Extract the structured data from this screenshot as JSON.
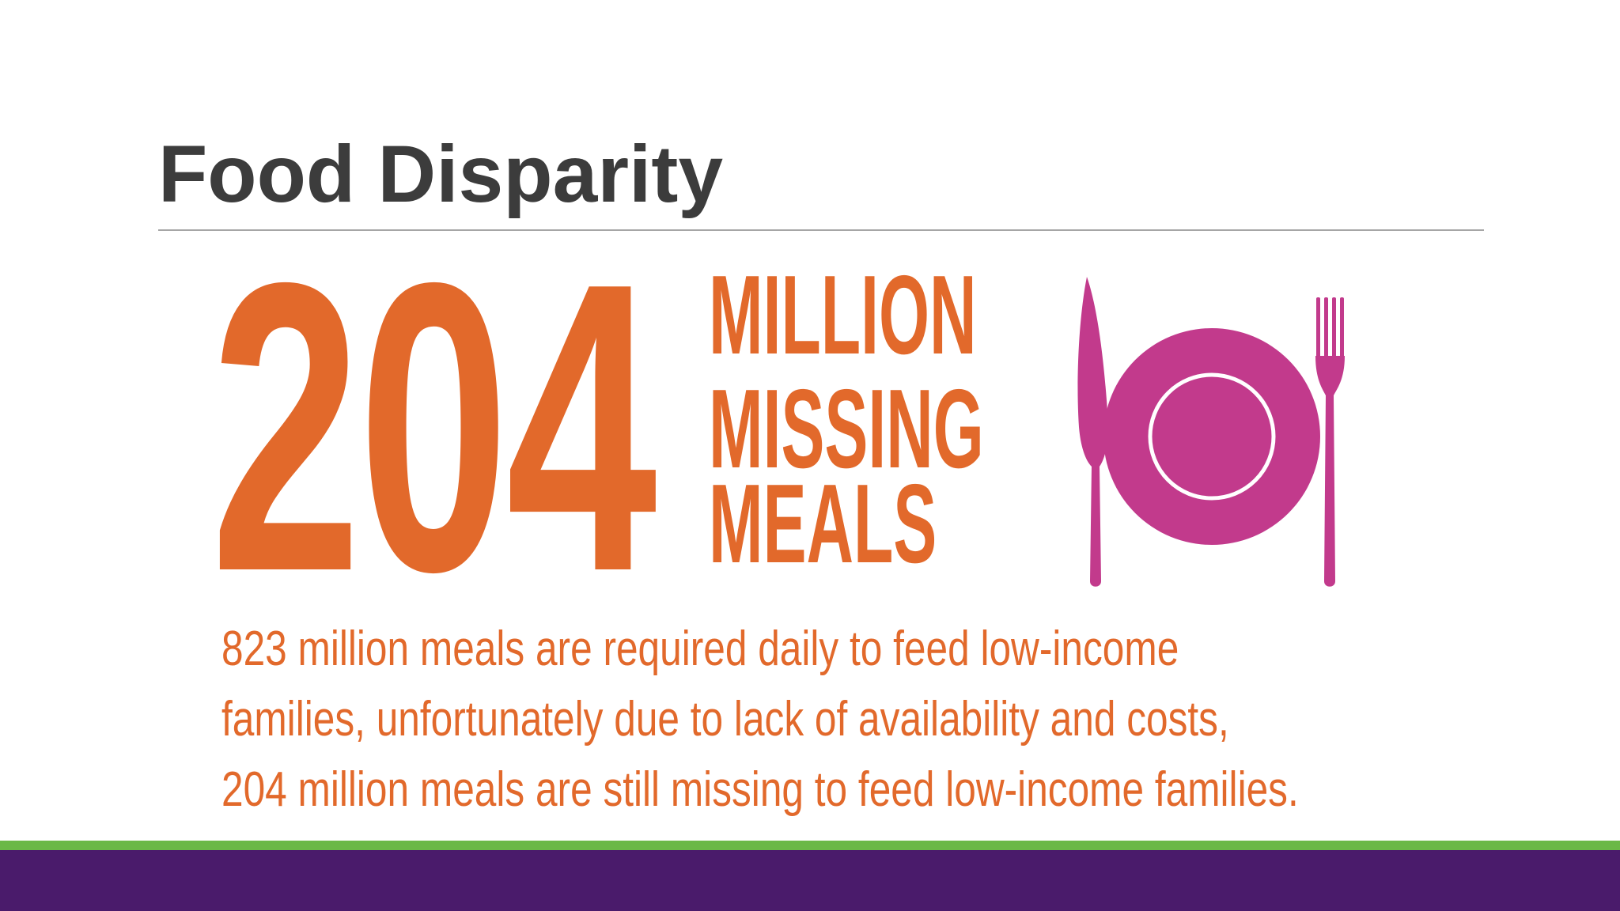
{
  "slide": {
    "title": "Food Disparity"
  },
  "infographic": {
    "big_number": "204",
    "headline_lines": [
      "MILLION",
      "MISSING",
      "MEALS"
    ],
    "description_lines": [
      "823 million meals are required daily to feed low-income",
      "families, unfortunately due to lack of availability and costs,",
      "204 million meals are still missing to feed low-income families."
    ],
    "icon": "plate-fork-knife-icon"
  },
  "colors": {
    "accent_orange": "#e2692b",
    "tableware_magenta": "#c23a8c",
    "title_gray": "#3c3c3c",
    "band_green": "#6ab847",
    "band_purple": "#4a1b6b"
  }
}
